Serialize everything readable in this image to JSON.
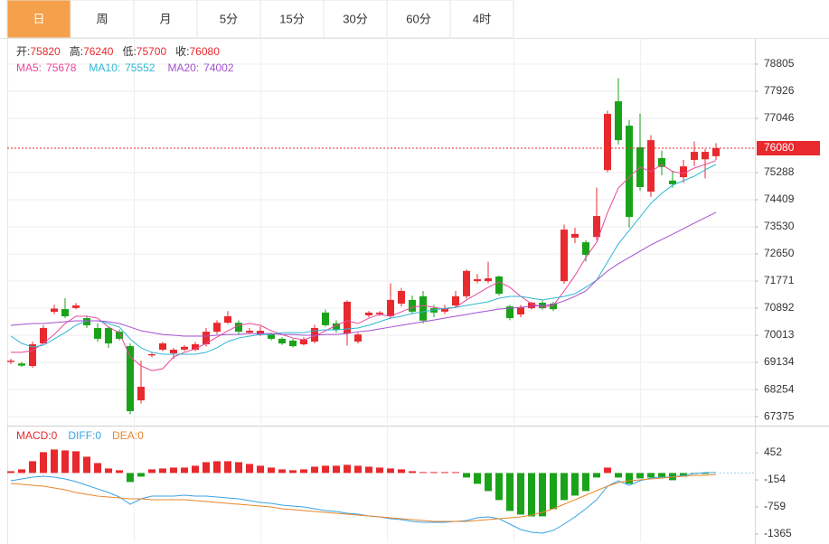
{
  "tabs": [
    "日",
    "周",
    "月",
    "5分",
    "15分",
    "30分",
    "60分",
    "4时"
  ],
  "active_tab": 0,
  "chart_data": [
    {
      "type": "candlestick",
      "up_color": "#e8292d",
      "down_color": "#1aa31a",
      "ohlc_legend": [
        {
          "label": "开:",
          "field": "open"
        },
        {
          "label": "高:",
          "field": "high"
        },
        {
          "label": "低:",
          "field": "low"
        },
        {
          "label": "收:",
          "field": "close"
        }
      ],
      "open": [
        69150,
        69100,
        69019,
        69751,
        70773,
        70863,
        70900,
        70570,
        70250,
        70250,
        70130,
        69664,
        67905,
        69360,
        69546,
        69430,
        69550,
        69546,
        69722,
        70130,
        70420,
        70420,
        70100,
        70040,
        70040,
        69900,
        69840,
        69720,
        69810,
        70750,
        70400,
        70070,
        69810,
        70660,
        70700,
        70630,
        71040,
        71160,
        71280,
        70890,
        70780,
        70980,
        71280,
        71770,
        71770,
        71920,
        70950,
        70690,
        70890,
        71070,
        71040,
        71770,
        73180,
        73030,
        73200,
        75370,
        77600,
        76810,
        76110,
        74670,
        75760,
        75030,
        75140,
        75700,
        75720,
        75820
      ],
      "high": [
        69250,
        69150,
        69810,
        70338,
        71000,
        71216,
        71060,
        70650,
        70400,
        70300,
        70200,
        69750,
        69190,
        69450,
        69800,
        69600,
        69700,
        69800,
        70250,
        70500,
        70800,
        70500,
        70250,
        70300,
        70100,
        69950,
        69900,
        69950,
        70350,
        70850,
        70500,
        71150,
        70100,
        70800,
        70800,
        71700,
        71550,
        71300,
        71450,
        71000,
        71000,
        71450,
        72150,
        72000,
        72400,
        71950,
        71000,
        71000,
        71100,
        71150,
        71100,
        73600,
        73500,
        73100,
        74800,
        77300,
        78350,
        77000,
        77200,
        76500,
        76000,
        75350,
        75700,
        76300,
        76050,
        76240
      ],
      "low": [
        69080,
        68990,
        68960,
        69780,
        70700,
        70570,
        70850,
        70250,
        69800,
        69600,
        69850,
        67450,
        67800,
        69300,
        69500,
        69250,
        69500,
        69500,
        69650,
        70050,
        70380,
        70050,
        70050,
        69990,
        69850,
        69700,
        69620,
        69680,
        69750,
        70300,
        70100,
        69680,
        69750,
        70600,
        70650,
        70550,
        70950,
        70700,
        70400,
        70600,
        70700,
        70900,
        71200,
        71700,
        71700,
        71300,
        70500,
        70600,
        70850,
        70850,
        70800,
        71680,
        73000,
        72400,
        73100,
        75300,
        76200,
        73500,
        74700,
        74500,
        75200,
        74800,
        74950,
        75500,
        75100,
        75700
      ],
      "close": [
        69190,
        69030,
        69722,
        70250,
        70880,
        70630,
        70980,
        70338,
        69900,
        69750,
        69900,
        67553,
        68344,
        69400,
        69751,
        69546,
        69640,
        69722,
        70130,
        70420,
        70630,
        70130,
        70160,
        70160,
        69900,
        69750,
        69660,
        69870,
        70250,
        70340,
        70190,
        71100,
        70040,
        70750,
        70750,
        71160,
        71450,
        70780,
        70490,
        70750,
        70890,
        71280,
        72100,
        71830,
        71860,
        71360,
        70570,
        70920,
        71070,
        70890,
        70860,
        73440,
        73300,
        72620,
        73880,
        77190,
        76340,
        73850,
        74820,
        76340,
        75470,
        74910,
        75490,
        75960,
        75960,
        76080
      ],
      "series": [
        {
          "name": "MA5:",
          "color": "#e8479a",
          "values": [
            69460,
            69460,
            69520,
            69750,
            70040,
            70395,
            70630,
            70630,
            70570,
            70280,
            70100,
            69310,
            69020,
            68870,
            68930,
            69310,
            69460,
            69575,
            69750,
            69955,
            70160,
            70337,
            70395,
            70337,
            70160,
            70040,
            69925,
            69870,
            69985,
            70160,
            70337,
            70485,
            70395,
            70570,
            70690,
            70630,
            70775,
            70920,
            70980,
            70920,
            70865,
            70920,
            71160,
            71360,
            71570,
            71745,
            71570,
            71275,
            71040,
            70920,
            70980,
            71450,
            71950,
            72535,
            73030,
            73990,
            74790,
            75140,
            75465,
            75320,
            75550,
            75320,
            75260,
            75435,
            75550,
            75678
          ]
        },
        {
          "name": "MA10:",
          "color": "#2fb6d4",
          "values": [
            69985,
            69750,
            69635,
            69690,
            69895,
            70100,
            70337,
            70485,
            70485,
            70395,
            70280,
            69895,
            69605,
            69460,
            69400,
            69400,
            69400,
            69400,
            69460,
            69605,
            69810,
            69925,
            69985,
            70040,
            70040,
            70100,
            70100,
            70100,
            70160,
            70190,
            70190,
            70220,
            70250,
            70337,
            70455,
            70570,
            70630,
            70720,
            70775,
            70835,
            70890,
            70920,
            70980,
            71040,
            71100,
            71215,
            71275,
            71275,
            71215,
            71160,
            71215,
            71275,
            71360,
            71570,
            71800,
            72390,
            72975,
            73410,
            73850,
            74290,
            74615,
            74880,
            75025,
            75171,
            75377,
            75552
          ]
        },
        {
          "name": "MA20:",
          "color": "#a44fcf",
          "values": [
            70337,
            70365,
            70395,
            70395,
            70425,
            70455,
            70485,
            70485,
            70485,
            70455,
            70395,
            70280,
            70160,
            70100,
            70040,
            70015,
            69985,
            69985,
            69985,
            70015,
            70040,
            70040,
            70070,
            70070,
            70070,
            70040,
            70040,
            70015,
            70015,
            70040,
            70040,
            70070,
            70130,
            70160,
            70220,
            70280,
            70337,
            70395,
            70455,
            70510,
            70570,
            70630,
            70690,
            70750,
            70806,
            70865,
            70890,
            70920,
            70955,
            70980,
            71010,
            71130,
            71275,
            71450,
            71800,
            72095,
            72330,
            72535,
            72740,
            72945,
            73120,
            73290,
            73470,
            73650,
            73825,
            74002
          ]
        }
      ],
      "ylim": [
        67114,
        79654
      ],
      "yticks": [
        78805,
        77926,
        77046,
        75288,
        74409,
        73530,
        72650,
        71771,
        70892,
        70013,
        69134,
        68254,
        67375
      ],
      "grid": true
    },
    {
      "type": "macd",
      "up_color": "#e8292d",
      "down_color": "#1aa31a",
      "histogram": {
        "name": "MACD:",
        "color": "#e8292d",
        "legend_value": 0,
        "values": [
          40,
          81,
          263,
          465,
          525,
          505,
          485,
          364,
          222,
          101,
          61,
          -202,
          -81,
          81,
          101,
          121,
          121,
          162,
          242,
          263,
          263,
          242,
          202,
          162,
          121,
          81,
          61,
          81,
          141,
          162,
          162,
          182,
          162,
          141,
          121,
          101,
          81,
          40,
          20,
          20,
          20,
          20,
          -101,
          -242,
          -404,
          -606,
          -848,
          -929,
          -970,
          -970,
          -808,
          -606,
          -505,
          -404,
          -101,
          121,
          -101,
          -242,
          -121,
          -101,
          -101,
          -162,
          -81,
          -20,
          -20,
          0
        ]
      },
      "series": [
        {
          "name": "DIFF:",
          "color": "#3aa3e3",
          "legend_value": 0,
          "values": [
            -174,
            -133,
            -93,
            -73,
            -93,
            -133,
            -194,
            -275,
            -356,
            -436,
            -537,
            -699,
            -578,
            -517,
            -517,
            -517,
            -497,
            -517,
            -517,
            -537,
            -558,
            -578,
            -618,
            -659,
            -679,
            -719,
            -739,
            -760,
            -800,
            -840,
            -861,
            -901,
            -921,
            -962,
            -982,
            -1022,
            -1042,
            -1083,
            -1103,
            -1103,
            -1103,
            -1083,
            -1063,
            -1002,
            -982,
            -1022,
            -1143,
            -1264,
            -1325,
            -1345,
            -1285,
            -1143,
            -982,
            -800,
            -598,
            -295,
            -174,
            -275,
            -174,
            -113,
            -93,
            -93,
            -53,
            -12,
            8,
            8
          ]
        },
        {
          "name": "DEA:",
          "color": "#e8862c",
          "legend_value": 0,
          "values": [
            -234,
            -255,
            -275,
            -295,
            -335,
            -376,
            -436,
            -477,
            -517,
            -537,
            -558,
            -578,
            -578,
            -598,
            -598,
            -598,
            -598,
            -618,
            -638,
            -659,
            -679,
            -699,
            -719,
            -739,
            -760,
            -800,
            -820,
            -840,
            -861,
            -881,
            -901,
            -921,
            -941,
            -962,
            -982,
            -1002,
            -1022,
            -1042,
            -1063,
            -1083,
            -1083,
            -1083,
            -1083,
            -1063,
            -1042,
            -1022,
            -1002,
            -982,
            -941,
            -881,
            -800,
            -699,
            -598,
            -497,
            -396,
            -295,
            -214,
            -174,
            -154,
            -133,
            -113,
            -93,
            -73,
            -53,
            -53,
            -32
          ]
        }
      ],
      "ylim": [
        -1547,
        978
      ],
      "yticks": [
        452,
        -154,
        -759,
        -1365
      ]
    }
  ]
}
